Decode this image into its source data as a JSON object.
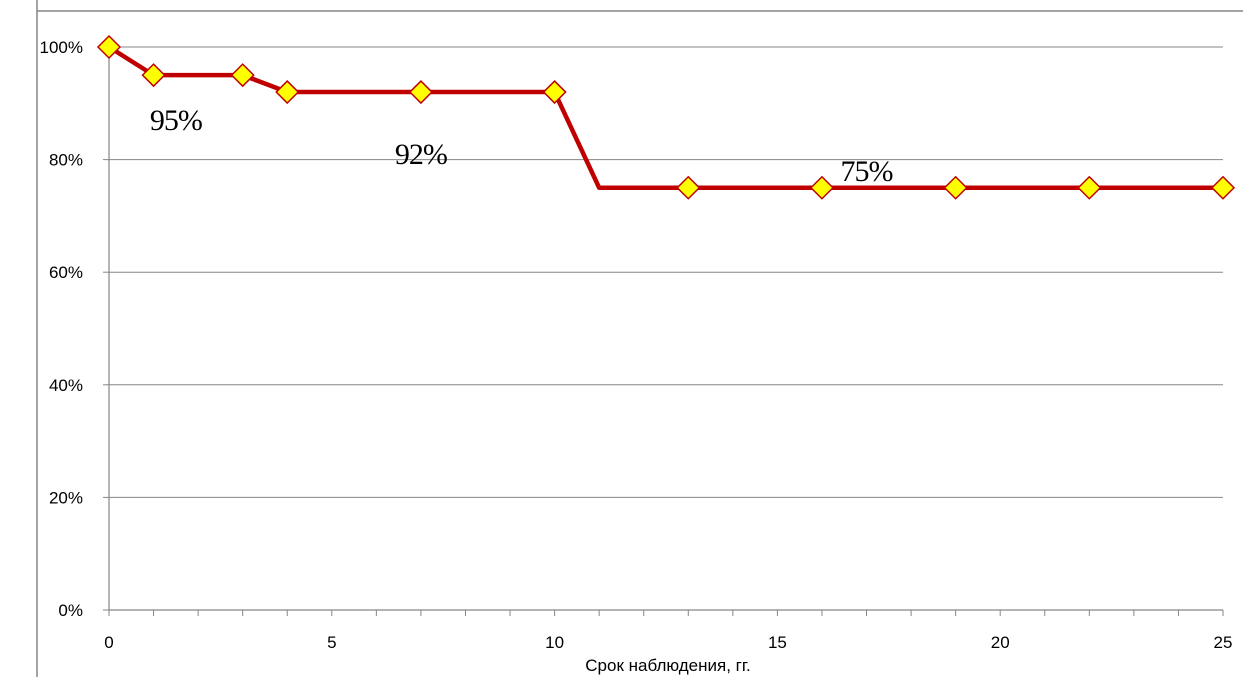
{
  "chart_data": {
    "type": "line",
    "title": "",
    "xlabel": "Срок наблюдения, гг.",
    "ylabel": "",
    "xlim": [
      0,
      25
    ],
    "ylim": [
      0,
      100
    ],
    "x_ticks": [
      0,
      5,
      10,
      15,
      20,
      25
    ],
    "x_tick_labels": [
      "0",
      "5",
      "10",
      "15",
      "20",
      "25"
    ],
    "y_ticks": [
      0,
      20,
      40,
      60,
      80,
      100
    ],
    "y_tick_labels": [
      "0%",
      "20%",
      "40%",
      "60%",
      "80%",
      "100%"
    ],
    "grid": "horizontal",
    "legend": "none",
    "series": [
      {
        "x": [
          0,
          1,
          3,
          4,
          7,
          10,
          11,
          13,
          16,
          19,
          22,
          25
        ],
        "y": [
          100,
          95,
          95,
          92,
          92,
          92,
          75,
          75,
          75,
          75,
          75,
          75
        ],
        "markers": [
          true,
          true,
          true,
          true,
          true,
          true,
          false,
          true,
          true,
          true,
          true,
          true
        ],
        "line_color": "#c00000",
        "marker_fill": "#ffff00",
        "marker_stroke": "#c00000"
      }
    ],
    "annotations": [
      {
        "text": "95%",
        "x": 1.5,
        "y": 87
      },
      {
        "text": "92%",
        "x": 7,
        "y": 81
      },
      {
        "text": "75%",
        "x": 17,
        "y": 78
      }
    ],
    "colors": {
      "gridline": "#868686",
      "axis": "#868686",
      "frame": "#868686"
    }
  }
}
